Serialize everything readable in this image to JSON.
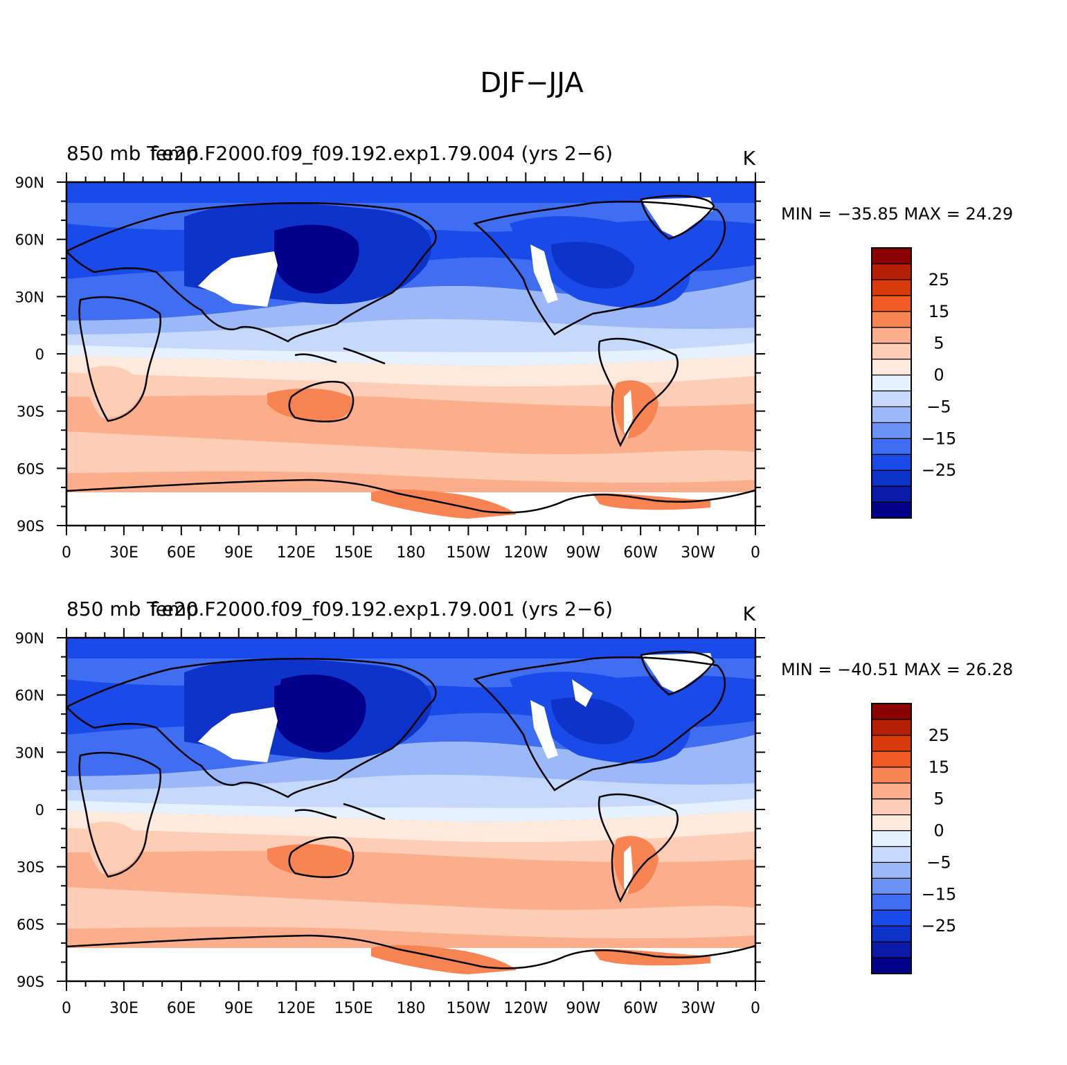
{
  "figure": {
    "title": "DJF−JJA"
  },
  "colorbar": {
    "colors": [
      "#00008b",
      "#0a1ba8",
      "#0d33c9",
      "#1a4be8",
      "#3f6ff0",
      "#6b93f5",
      "#9bb9f8",
      "#c4d9fc",
      "#e5f1ff",
      "#feeadd",
      "#fdcdb5",
      "#fcae8c",
      "#f98453",
      "#f05a23",
      "#d83a0a",
      "#b41f05",
      "#8b0000"
    ],
    "labels": [
      "25",
      "15",
      "5",
      "0",
      "−5",
      "−15",
      "−25"
    ]
  },
  "axes": {
    "lat_labels": [
      "90N",
      "60N",
      "30N",
      "0",
      "30S",
      "60S",
      "90S"
    ],
    "lon_labels": [
      "0",
      "30E",
      "60E",
      "90E",
      "120E",
      "150E",
      "180",
      "150W",
      "120W",
      "90W",
      "60W",
      "30W",
      "0"
    ]
  },
  "panels": [
    {
      "left_title": "850 mb Temp",
      "center_title": "f.e20.F2000.f09_f09.192.exp1.79.004 (yrs 2−6)",
      "units": "K",
      "stats": "MIN = −35.85  MAX =   24.29"
    },
    {
      "left_title": "850 mb Temp",
      "center_title": "f.e20.F2000.f09_f09.192.exp1.79.001 (yrs 2−6)",
      "units": "K",
      "stats": "MIN = −40.51  MAX =   26.28"
    }
  ]
}
